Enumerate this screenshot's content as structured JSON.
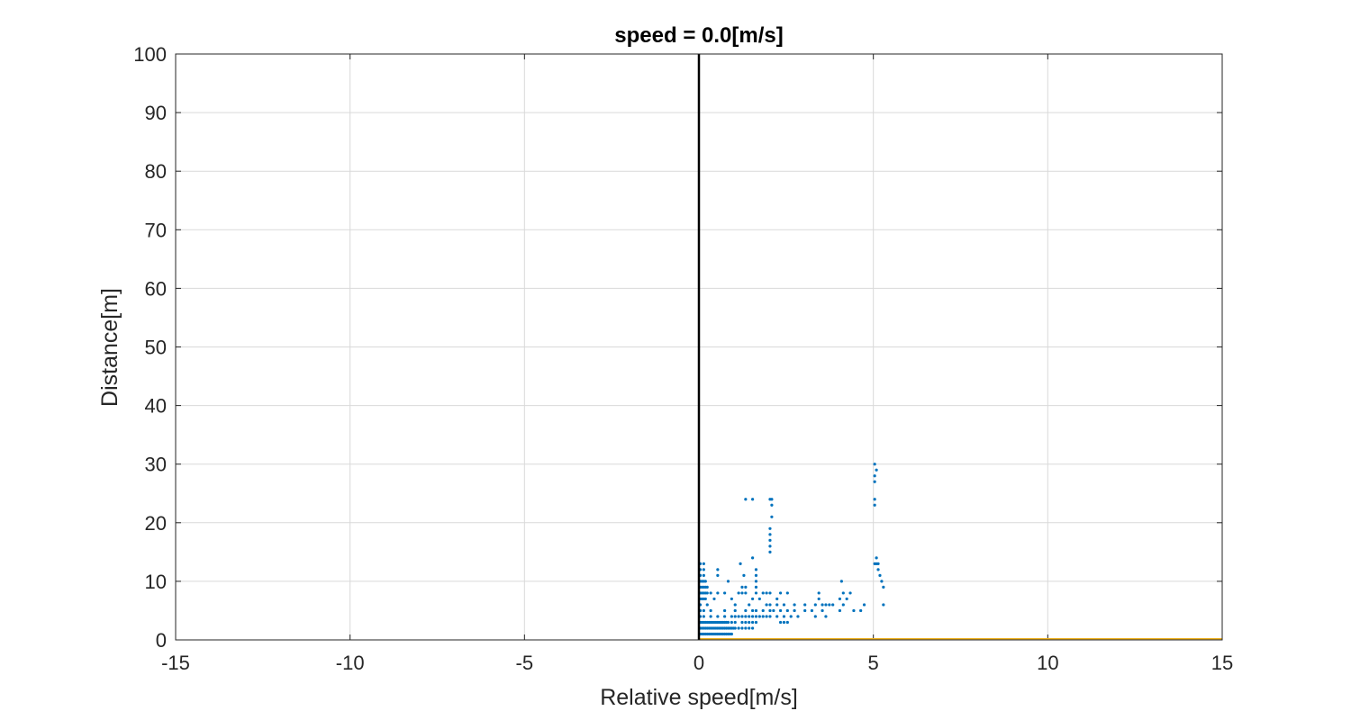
{
  "chart_data": {
    "type": "scatter",
    "title": "speed = 0.0[m/s]",
    "xlabel": "Relative speed[m/s]",
    "ylabel": "Distance[m]",
    "xlim": [
      -15,
      15
    ],
    "ylim": [
      0,
      100
    ],
    "xticks": [
      "-15",
      "-10",
      "-5",
      "0",
      "5",
      "10",
      "15"
    ],
    "yticks": [
      "0",
      "10",
      "20",
      "30",
      "40",
      "50",
      "60",
      "70",
      "80",
      "90",
      "100"
    ],
    "grid": true,
    "colors": {
      "points": "#0072BD",
      "reference_line": "#000000",
      "boundary_line": "#EDB120"
    },
    "reference_line": {
      "x": 0,
      "y": [
        0,
        100
      ]
    },
    "boundary_line": {
      "x": [
        0,
        0,
        15
      ],
      "y": [
        60,
        0,
        0
      ]
    },
    "points": [
      [
        0.0,
        1
      ],
      [
        0.0,
        2
      ],
      [
        0.0,
        3
      ],
      [
        0.0,
        4
      ],
      [
        0.0,
        5
      ],
      [
        0.0,
        6
      ],
      [
        0.0,
        7
      ],
      [
        0.0,
        8
      ],
      [
        0.0,
        9
      ],
      [
        0.0,
        10
      ],
      [
        0.0,
        11
      ],
      [
        0.0,
        12
      ],
      [
        0.0,
        13
      ],
      [
        0.05,
        1
      ],
      [
        0.1,
        1
      ],
      [
        0.15,
        1
      ],
      [
        0.2,
        1
      ],
      [
        0.25,
        1
      ],
      [
        0.3,
        1
      ],
      [
        0.35,
        1
      ],
      [
        0.4,
        1
      ],
      [
        0.45,
        1
      ],
      [
        0.5,
        1
      ],
      [
        0.55,
        1
      ],
      [
        0.6,
        1
      ],
      [
        0.65,
        1
      ],
      [
        0.7,
        1
      ],
      [
        0.75,
        1
      ],
      [
        0.8,
        1
      ],
      [
        0.85,
        1
      ],
      [
        0.9,
        1
      ],
      [
        0.05,
        2
      ],
      [
        0.1,
        2
      ],
      [
        0.15,
        2
      ],
      [
        0.2,
        2
      ],
      [
        0.25,
        2
      ],
      [
        0.3,
        2
      ],
      [
        0.35,
        2
      ],
      [
        0.4,
        2
      ],
      [
        0.45,
        2
      ],
      [
        0.5,
        2
      ],
      [
        0.55,
        2
      ],
      [
        0.6,
        2
      ],
      [
        0.65,
        2
      ],
      [
        0.7,
        2
      ],
      [
        0.75,
        2
      ],
      [
        0.8,
        2
      ],
      [
        0.85,
        2
      ],
      [
        0.9,
        2
      ],
      [
        0.95,
        2
      ],
      [
        1.0,
        2
      ],
      [
        1.1,
        2
      ],
      [
        1.2,
        2
      ],
      [
        1.3,
        2
      ],
      [
        1.4,
        2
      ],
      [
        1.5,
        2
      ],
      [
        0.05,
        3
      ],
      [
        0.1,
        3
      ],
      [
        0.15,
        3
      ],
      [
        0.2,
        3
      ],
      [
        0.25,
        3
      ],
      [
        0.3,
        3
      ],
      [
        0.35,
        3
      ],
      [
        0.4,
        3
      ],
      [
        0.45,
        3
      ],
      [
        0.5,
        3
      ],
      [
        0.55,
        3
      ],
      [
        0.6,
        3
      ],
      [
        0.65,
        3
      ],
      [
        0.7,
        3
      ],
      [
        0.75,
        3
      ],
      [
        0.8,
        3
      ],
      [
        0.9,
        3
      ],
      [
        1.0,
        3
      ],
      [
        1.2,
        3
      ],
      [
        1.3,
        3
      ],
      [
        1.4,
        3
      ],
      [
        1.5,
        3
      ],
      [
        1.6,
        3
      ],
      [
        2.3,
        3
      ],
      [
        2.4,
        3
      ],
      [
        2.5,
        3
      ],
      [
        0.1,
        4
      ],
      [
        0.3,
        4
      ],
      [
        0.5,
        4
      ],
      [
        0.7,
        4
      ],
      [
        0.9,
        4
      ],
      [
        1.0,
        4
      ],
      [
        1.1,
        4
      ],
      [
        1.2,
        4
      ],
      [
        1.3,
        4
      ],
      [
        1.4,
        4
      ],
      [
        1.5,
        4
      ],
      [
        1.6,
        4
      ],
      [
        1.7,
        4
      ],
      [
        1.8,
        4
      ],
      [
        1.9,
        4
      ],
      [
        2.0,
        4
      ],
      [
        2.2,
        4
      ],
      [
        2.4,
        4
      ],
      [
        2.6,
        4
      ],
      [
        2.8,
        4
      ],
      [
        3.3,
        4
      ],
      [
        3.6,
        4
      ],
      [
        0.1,
        5
      ],
      [
        0.3,
        5
      ],
      [
        0.7,
        5
      ],
      [
        1.0,
        5
      ],
      [
        1.3,
        5
      ],
      [
        1.5,
        5
      ],
      [
        1.6,
        5
      ],
      [
        1.8,
        5
      ],
      [
        2.0,
        5
      ],
      [
        2.1,
        5
      ],
      [
        2.3,
        5
      ],
      [
        2.5,
        5
      ],
      [
        2.7,
        5
      ],
      [
        3.0,
        5
      ],
      [
        3.2,
        5
      ],
      [
        3.5,
        5
      ],
      [
        4.0,
        5
      ],
      [
        4.4,
        5
      ],
      [
        4.6,
        5
      ],
      [
        0.2,
        6
      ],
      [
        1.0,
        6
      ],
      [
        1.4,
        6
      ],
      [
        1.9,
        6
      ],
      [
        2.0,
        6
      ],
      [
        2.2,
        6
      ],
      [
        2.4,
        6
      ],
      [
        2.7,
        6
      ],
      [
        3.0,
        6
      ],
      [
        3.3,
        6
      ],
      [
        3.5,
        6
      ],
      [
        3.6,
        6
      ],
      [
        3.7,
        6
      ],
      [
        3.8,
        6
      ],
      [
        4.1,
        6
      ],
      [
        4.7,
        6
      ],
      [
        5.25,
        6
      ],
      [
        0.05,
        7
      ],
      [
        0.1,
        7
      ],
      [
        0.15,
        7
      ],
      [
        0.4,
        7
      ],
      [
        0.9,
        7
      ],
      [
        1.5,
        7
      ],
      [
        1.7,
        7
      ],
      [
        2.2,
        7
      ],
      [
        3.4,
        7
      ],
      [
        4.0,
        7
      ],
      [
        4.2,
        7
      ],
      [
        0.05,
        8
      ],
      [
        0.1,
        8
      ],
      [
        0.15,
        8
      ],
      [
        0.2,
        8
      ],
      [
        0.3,
        8
      ],
      [
        0.5,
        8
      ],
      [
        0.7,
        8
      ],
      [
        1.1,
        8
      ],
      [
        1.2,
        8
      ],
      [
        1.3,
        8
      ],
      [
        1.6,
        8
      ],
      [
        1.8,
        8
      ],
      [
        1.9,
        8
      ],
      [
        2.0,
        8
      ],
      [
        2.3,
        8
      ],
      [
        2.5,
        8
      ],
      [
        3.4,
        8
      ],
      [
        4.1,
        8
      ],
      [
        4.3,
        8
      ],
      [
        0.05,
        9
      ],
      [
        0.1,
        9
      ],
      [
        0.15,
        9
      ],
      [
        0.2,
        9
      ],
      [
        1.2,
        9
      ],
      [
        1.3,
        9
      ],
      [
        1.6,
        9
      ],
      [
        5.25,
        9
      ],
      [
        0.05,
        10
      ],
      [
        0.1,
        10
      ],
      [
        0.15,
        10
      ],
      [
        0.8,
        10
      ],
      [
        1.6,
        10
      ],
      [
        4.05,
        10
      ],
      [
        5.2,
        10
      ],
      [
        0.1,
        11
      ],
      [
        0.5,
        11
      ],
      [
        1.25,
        11
      ],
      [
        1.6,
        11
      ],
      [
        5.15,
        11
      ],
      [
        0.1,
        12
      ],
      [
        0.5,
        12
      ],
      [
        1.6,
        12
      ],
      [
        5.1,
        12
      ],
      [
        0.1,
        13
      ],
      [
        1.15,
        13
      ],
      [
        5.0,
        13
      ],
      [
        5.05,
        13
      ],
      [
        5.1,
        13
      ],
      [
        1.5,
        14
      ],
      [
        5.05,
        14
      ],
      [
        2.0,
        15
      ],
      [
        2.0,
        16
      ],
      [
        2.0,
        17
      ],
      [
        2.0,
        18
      ],
      [
        2.0,
        19
      ],
      [
        2.05,
        21
      ],
      [
        2.05,
        23
      ],
      [
        2.0,
        24
      ],
      [
        2.05,
        24
      ],
      [
        1.3,
        24
      ],
      [
        1.5,
        24
      ],
      [
        5.0,
        23
      ],
      [
        5.0,
        24
      ],
      [
        5.0,
        27
      ],
      [
        5.0,
        28
      ],
      [
        5.05,
        29
      ],
      [
        5.0,
        30
      ]
    ]
  }
}
